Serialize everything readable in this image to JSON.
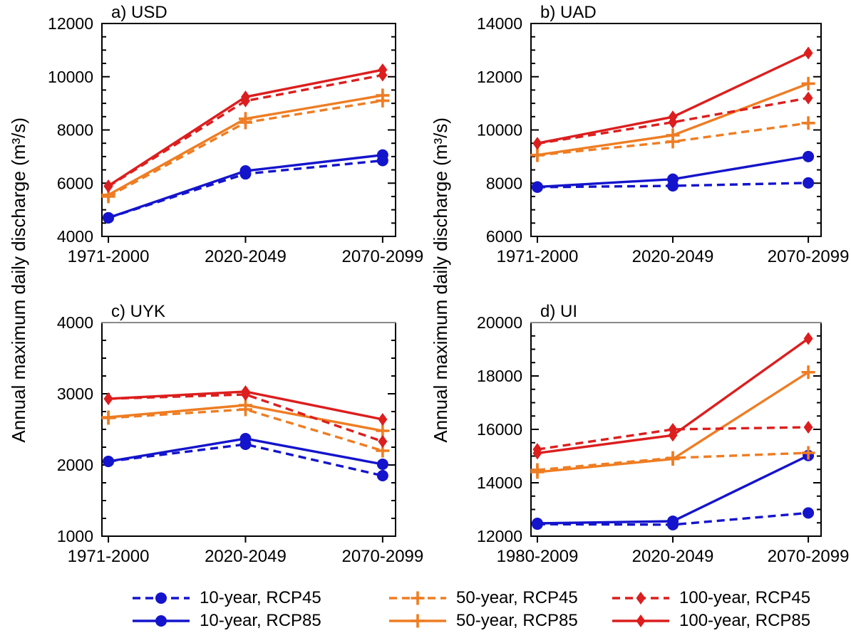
{
  "figure": {
    "ylabel": "Annual maximum daily discharge (m³/s)",
    "background": "#ffffff"
  },
  "colors": {
    "blue": "#1414cc",
    "orange": "#ee7d23",
    "red": "#dc1e1e"
  },
  "legend": {
    "position": "bottom",
    "rows": [
      [
        {
          "label": "10-year, RCP45",
          "color": "#1414cc",
          "line": "dashed",
          "marker": "circle"
        },
        {
          "label": "50-year, RCP45",
          "color": "#ee7d23",
          "line": "dashed",
          "marker": "plus"
        },
        {
          "label": "100-year, RCP45",
          "color": "#dc1e1e",
          "line": "dashed",
          "marker": "diamond"
        }
      ],
      [
        {
          "label": "10-year, RCP85",
          "color": "#1414cc",
          "line": "solid",
          "marker": "circle"
        },
        {
          "label": "50-year, RCP85",
          "color": "#ee7d23",
          "line": "solid",
          "marker": "plus"
        },
        {
          "label": "100-year, RCP85",
          "color": "#dc1e1e",
          "line": "solid",
          "marker": "diamond"
        }
      ]
    ]
  },
  "chart_data": [
    {
      "type": "line",
      "title": "a) USD",
      "categories": [
        "1971-2000",
        "2020-2049",
        "2070-2099"
      ],
      "xlabel": "",
      "ylabel": "Annual maximum daily discharge (m³/s)",
      "ylim": [
        4000,
        12000
      ],
      "ytick_step": 2000,
      "minor_step": 500,
      "grid": false,
      "series": [
        {
          "name": "10-year, RCP45",
          "color": "#1414cc",
          "line": "dashed",
          "marker": "circle",
          "values": [
            4700,
            6350,
            6850
          ]
        },
        {
          "name": "10-year, RCP85",
          "color": "#1414cc",
          "line": "solid",
          "marker": "circle",
          "values": [
            4700,
            6460,
            7060
          ]
        },
        {
          "name": "50-year, RCP45",
          "color": "#ee7d23",
          "line": "dashed",
          "marker": "plus",
          "values": [
            5500,
            8280,
            9100
          ]
        },
        {
          "name": "50-year, RCP85",
          "color": "#ee7d23",
          "line": "solid",
          "marker": "plus",
          "values": [
            5560,
            8420,
            9300
          ]
        },
        {
          "name": "100-year, RCP45",
          "color": "#dc1e1e",
          "line": "dashed",
          "marker": "diamond",
          "values": [
            5880,
            9090,
            10060
          ]
        },
        {
          "name": "100-year, RCP85",
          "color": "#dc1e1e",
          "line": "solid",
          "marker": "diamond",
          "values": [
            5900,
            9240,
            10260
          ]
        }
      ]
    },
    {
      "type": "line",
      "title": "b) UAD",
      "categories": [
        "1971-2000",
        "2020-2049",
        "2070-2099"
      ],
      "xlabel": "",
      "ylabel": "Annual maximum daily discharge (m³/s)",
      "ylim": [
        6000,
        14000
      ],
      "ytick_step": 2000,
      "minor_step": 500,
      "grid": false,
      "series": [
        {
          "name": "10-year, RCP45",
          "color": "#1414cc",
          "line": "dashed",
          "marker": "circle",
          "values": [
            7850,
            7900,
            8010
          ]
        },
        {
          "name": "10-year, RCP85",
          "color": "#1414cc",
          "line": "solid",
          "marker": "circle",
          "values": [
            7860,
            8150,
            9000
          ]
        },
        {
          "name": "50-year, RCP45",
          "color": "#ee7d23",
          "line": "dashed",
          "marker": "plus",
          "values": [
            9050,
            9560,
            10260
          ]
        },
        {
          "name": "50-year, RCP85",
          "color": "#ee7d23",
          "line": "solid",
          "marker": "plus",
          "values": [
            9060,
            9800,
            11740
          ]
        },
        {
          "name": "100-year, RCP45",
          "color": "#dc1e1e",
          "line": "dashed",
          "marker": "diamond",
          "values": [
            9490,
            10290,
            11200
          ]
        },
        {
          "name": "100-year, RCP85",
          "color": "#dc1e1e",
          "line": "solid",
          "marker": "diamond",
          "values": [
            9500,
            10490,
            12890
          ]
        }
      ]
    },
    {
      "type": "line",
      "title": "c) UYK",
      "categories": [
        "1971-2000",
        "2020-2049",
        "2070-2099"
      ],
      "xlabel": "",
      "ylabel": "Annual maximum daily discharge (m³/s)",
      "ylim": [
        1000,
        4000
      ],
      "ytick_step": 1000,
      "minor_step": 250,
      "grid": false,
      "series": [
        {
          "name": "10-year, RCP45",
          "color": "#1414cc",
          "line": "dashed",
          "marker": "circle",
          "values": [
            2050,
            2290,
            1850
          ]
        },
        {
          "name": "10-year, RCP85",
          "color": "#1414cc",
          "line": "solid",
          "marker": "circle",
          "values": [
            2050,
            2370,
            2010
          ]
        },
        {
          "name": "50-year, RCP45",
          "color": "#ee7d23",
          "line": "dashed",
          "marker": "plus",
          "values": [
            2660,
            2780,
            2200
          ]
        },
        {
          "name": "50-year, RCP85",
          "color": "#ee7d23",
          "line": "solid",
          "marker": "plus",
          "values": [
            2670,
            2840,
            2480
          ]
        },
        {
          "name": "100-year, RCP45",
          "color": "#dc1e1e",
          "line": "dashed",
          "marker": "diamond",
          "values": [
            2930,
            2990,
            2330
          ]
        },
        {
          "name": "100-year, RCP85",
          "color": "#dc1e1e",
          "line": "solid",
          "marker": "diamond",
          "values": [
            2930,
            3030,
            2640
          ]
        }
      ]
    },
    {
      "type": "line",
      "title": "d) UI",
      "categories": [
        "1980-2009",
        "2020-2049",
        "2070-2099"
      ],
      "xlabel": "",
      "ylabel": "Annual maximum daily discharge (m³/s)",
      "ylim": [
        12000,
        20000
      ],
      "ytick_step": 2000,
      "minor_step": 500,
      "grid": false,
      "series": [
        {
          "name": "10-year, RCP45",
          "color": "#1414cc",
          "line": "dashed",
          "marker": "circle",
          "values": [
            12450,
            12430,
            12870
          ]
        },
        {
          "name": "10-year, RCP85",
          "color": "#1414cc",
          "line": "solid",
          "marker": "circle",
          "values": [
            12480,
            12560,
            15020
          ]
        },
        {
          "name": "50-year, RCP45",
          "color": "#ee7d23",
          "line": "dashed",
          "marker": "plus",
          "values": [
            14480,
            14930,
            15120
          ]
        },
        {
          "name": "50-year, RCP85",
          "color": "#ee7d23",
          "line": "solid",
          "marker": "plus",
          "values": [
            14400,
            14890,
            18140
          ]
        },
        {
          "name": "100-year, RCP45",
          "color": "#dc1e1e",
          "line": "dashed",
          "marker": "diamond",
          "values": [
            15250,
            16000,
            16080
          ]
        },
        {
          "name": "100-year, RCP85",
          "color": "#dc1e1e",
          "line": "solid",
          "marker": "diamond",
          "values": [
            15110,
            15780,
            19400
          ]
        }
      ]
    }
  ]
}
